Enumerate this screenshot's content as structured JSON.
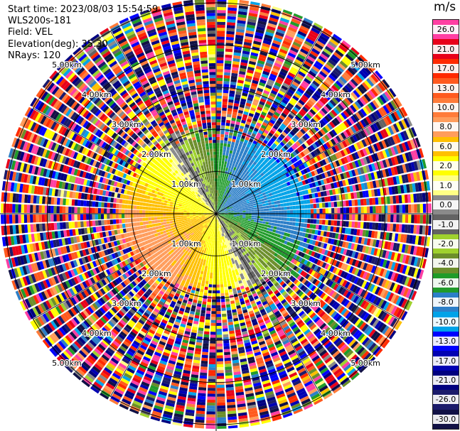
{
  "header": {
    "start_time": "Start time: 2023/08/03 15:54:59",
    "instrument": "WLS200s-181",
    "field": "Field: VEL",
    "elevation": "Elevation(deg): 35.30",
    "nrays": "NRays: 120"
  },
  "colorbar": {
    "units": "m/s",
    "levels": [
      {
        "label": "26.0",
        "color": "#ff3fa3"
      },
      {
        "label": "21.0",
        "color": "#e8001a"
      },
      {
        "label": "17.0",
        "color": "#ff2a00"
      },
      {
        "label": "13.0",
        "color": "#ff5a1e"
      },
      {
        "label": "10.0",
        "color": "#ff7c3a"
      },
      {
        "label": "8.0",
        "color": "#ff9d5c"
      },
      {
        "label": "6.0",
        "color": "#ffc000"
      },
      {
        "label": "2.0",
        "color": "#ffff00"
      },
      {
        "label": "1.0",
        "color": "#ffff85"
      },
      {
        "label": "0.0",
        "color": "#8a8a8a"
      },
      {
        "label": "-1.0",
        "color": "#636363"
      },
      {
        "label": "-2.0",
        "color": "#9fd12e"
      },
      {
        "label": "-4.0",
        "color": "#6c8e2b"
      },
      {
        "label": "-6.0",
        "color": "#209b2a"
      },
      {
        "label": "-8.0",
        "color": "#2c7fc8"
      },
      {
        "label": "-10.0",
        "color": "#00a3e8"
      },
      {
        "label": "-13.0",
        "color": "#0000ff"
      },
      {
        "label": "-17.0",
        "color": "#0000b3"
      },
      {
        "label": "-21.0",
        "color": "#000080"
      },
      {
        "label": "-26.0",
        "color": "#1b1b6b"
      },
      {
        "label": "-30.0",
        "color": "#111145"
      }
    ]
  },
  "chart_data": {
    "type": "heatmap",
    "projection": "polar PPI",
    "field": "VEL",
    "nrays": 120,
    "range_ring_labels": [
      "1.00km",
      "2.00km",
      "3.00km",
      "4.00km",
      "5.00km"
    ],
    "range_rings_km": [
      1,
      2,
      3,
      4,
      5
    ],
    "max_range_km": 5.1,
    "gate_km": 0.07,
    "valid_range_km": 2.0,
    "wind": {
      "toward_bearing_deg": 240,
      "min_velocity": -10,
      "max_velocity": 10
    },
    "ring_label_bearings_deg": [
      45,
      135,
      225,
      315
    ],
    "spokes_deg": [
      0,
      30,
      60,
      90,
      120,
      150,
      180,
      210,
      240,
      270,
      300,
      330
    ]
  }
}
